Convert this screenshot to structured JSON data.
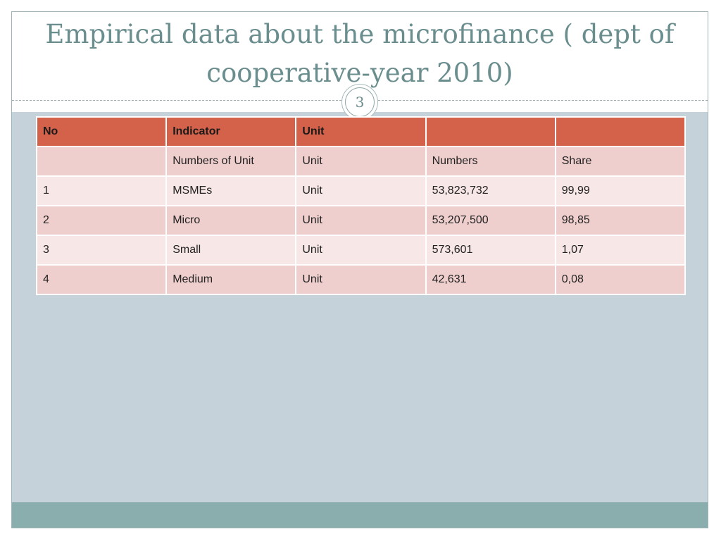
{
  "slide": {
    "title": "Empirical data about the microfinance ( dept of cooperative-year 2010)",
    "page_number": "3"
  },
  "table": {
    "headers": [
      "No",
      "Indicator",
      "Unit",
      "",
      ""
    ],
    "rows": [
      [
        "",
        "Numbers of Unit",
        "Unit",
        "Numbers",
        "Share"
      ],
      [
        "1",
        "MSMEs",
        "Unit",
        "53,823,732",
        "99,99"
      ],
      [
        "2",
        "Micro",
        "Unit",
        "53,207,500",
        "98,85"
      ],
      [
        "3",
        "Small",
        "Unit",
        "573,601",
        "1,07"
      ],
      [
        "4",
        "Medium",
        "Unit",
        "42,631",
        "0,08"
      ]
    ]
  },
  "colors": {
    "header": "#d4614a",
    "row_odd": "#efcfcd",
    "row_even": "#f7e7e6",
    "title": "#6a8d8e",
    "background": "#c6d2d9",
    "footer": "#8aaeae"
  }
}
